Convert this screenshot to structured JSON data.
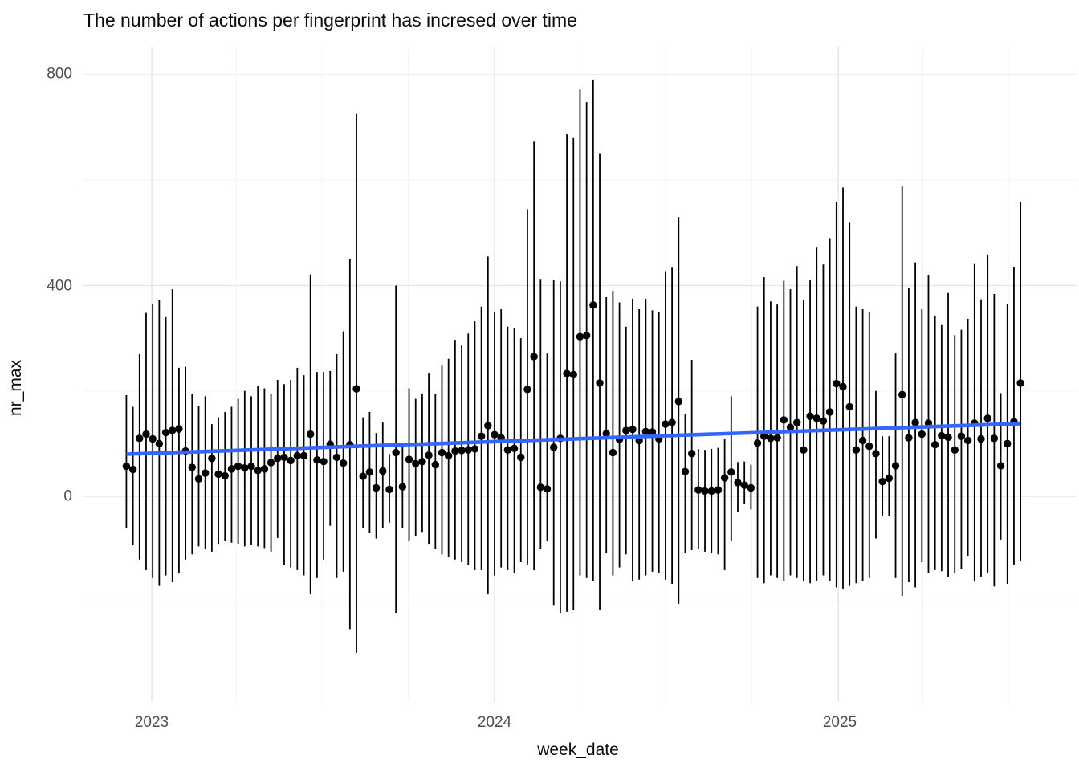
{
  "chart_data": {
    "type": "scatter",
    "title": "The number of actions per fingerprint has incresed over time",
    "xlabel": "week_date",
    "ylabel": "nr_max",
    "x_tick_labels": [
      "2023",
      "2024",
      "2025"
    ],
    "y_tick_labels": [
      "0",
      "400",
      "800"
    ],
    "legend": "none",
    "grid": "on",
    "axes": {
      "x_major_dates": [
        "2023-01-01",
        "2024-01-01",
        "2025-01-01"
      ],
      "x_minor_dates": [
        "2023-04-01",
        "2023-07-01",
        "2023-10-01",
        "2024-04-01",
        "2024-07-01",
        "2024-10-01",
        "2025-04-01",
        "2025-07-01"
      ],
      "y_major": [
        0,
        400,
        800
      ],
      "y_minor": [
        -200,
        200,
        600
      ],
      "ylim": [
        -390,
        840
      ],
      "x_range": [
        "2022-12-05",
        "2025-07-14"
      ]
    },
    "colors": {
      "point": "#000000",
      "range_bar": "#000000",
      "trend": "#3366FF",
      "grid_major": "#e7e7e7",
      "grid_minor": "#f3f3f3",
      "tick_text": "#4d4d4d",
      "title_text": "#0b0b0b",
      "background": "#ffffff"
    },
    "trend": {
      "type": "linear",
      "start_date": "2022-12-05",
      "start_value": 80,
      "end_date": "2025-07-14",
      "end_value": 138
    },
    "points_format": [
      "week_date",
      "ymin",
      "nr_max",
      "ymax"
    ],
    "points": [
      [
        "2022-12-05",
        -61,
        57,
        192
      ],
      [
        "2022-12-12",
        -92,
        51,
        170
      ],
      [
        "2022-12-19",
        -120,
        110,
        270
      ],
      [
        "2022-12-26",
        -140,
        118,
        348
      ],
      [
        "2023-01-02",
        -155,
        109,
        366
      ],
      [
        "2023-01-09",
        -170,
        100,
        373
      ],
      [
        "2023-01-16",
        -150,
        121,
        340
      ],
      [
        "2023-01-23",
        -163,
        125,
        393
      ],
      [
        "2023-01-30",
        -145,
        128,
        244
      ],
      [
        "2023-02-06",
        -120,
        86,
        246
      ],
      [
        "2023-02-13",
        -110,
        55,
        195
      ],
      [
        "2023-02-20",
        -95,
        33,
        172
      ],
      [
        "2023-02-27",
        -100,
        44,
        190
      ],
      [
        "2023-03-06",
        -105,
        72,
        137
      ],
      [
        "2023-03-13",
        -90,
        42,
        150
      ],
      [
        "2023-03-20",
        -85,
        39,
        160
      ],
      [
        "2023-03-27",
        -88,
        52,
        170
      ],
      [
        "2023-04-03",
        -90,
        57,
        185
      ],
      [
        "2023-04-10",
        -95,
        54,
        200
      ],
      [
        "2023-04-17",
        -92,
        57,
        190
      ],
      [
        "2023-04-24",
        -95,
        49,
        210
      ],
      [
        "2023-05-01",
        -98,
        52,
        205
      ],
      [
        "2023-05-08",
        -105,
        64,
        195
      ],
      [
        "2023-05-15",
        -79,
        72,
        221
      ],
      [
        "2023-05-22",
        -130,
        74,
        213
      ],
      [
        "2023-05-29",
        -135,
        68,
        221
      ],
      [
        "2023-06-05",
        -140,
        77,
        244
      ],
      [
        "2023-06-12",
        -150,
        77,
        230
      ],
      [
        "2023-06-19",
        -186,
        118,
        421
      ],
      [
        "2023-06-26",
        -155,
        69,
        236
      ],
      [
        "2023-07-03",
        -120,
        66,
        236
      ],
      [
        "2023-07-10",
        -56,
        99,
        238
      ],
      [
        "2023-07-17",
        -155,
        74,
        270
      ],
      [
        "2023-07-24",
        -143,
        63,
        313
      ],
      [
        "2023-07-31",
        -252,
        98,
        450
      ],
      [
        "2023-08-07",
        -297,
        204,
        726
      ],
      [
        "2023-08-14",
        -60,
        38,
        150
      ],
      [
        "2023-08-21",
        -70,
        46,
        160
      ],
      [
        "2023-08-28",
        -80,
        16,
        120
      ],
      [
        "2023-09-04",
        -60,
        48,
        140
      ],
      [
        "2023-09-11",
        -50,
        13,
        80
      ],
      [
        "2023-09-18",
        -221,
        83,
        400
      ],
      [
        "2023-09-25",
        -60,
        18,
        100
      ],
      [
        "2023-10-02",
        -84,
        70,
        205
      ],
      [
        "2023-10-09",
        -75,
        62,
        185
      ],
      [
        "2023-10-16",
        -69,
        66,
        195
      ],
      [
        "2023-10-23",
        -90,
        78,
        233
      ],
      [
        "2023-10-30",
        -100,
        60,
        195
      ],
      [
        "2023-11-06",
        -110,
        83,
        248
      ],
      [
        "2023-11-13",
        -115,
        77,
        261
      ],
      [
        "2023-11-20",
        -120,
        86,
        297
      ],
      [
        "2023-11-27",
        -125,
        87,
        287
      ],
      [
        "2023-12-04",
        -130,
        88,
        309
      ],
      [
        "2023-12-11",
        -140,
        90,
        332
      ],
      [
        "2023-12-18",
        -140,
        114,
        360
      ],
      [
        "2023-12-25",
        -186,
        134,
        455
      ],
      [
        "2024-01-01",
        -150,
        117,
        350
      ],
      [
        "2024-01-08",
        -135,
        111,
        355
      ],
      [
        "2024-01-15",
        -140,
        88,
        322
      ],
      [
        "2024-01-22",
        -145,
        91,
        320
      ],
      [
        "2024-01-29",
        -125,
        74,
        300
      ],
      [
        "2024-02-05",
        -130,
        203,
        545
      ],
      [
        "2024-02-12",
        -140,
        265,
        673
      ],
      [
        "2024-02-19",
        -99,
        17,
        411
      ],
      [
        "2024-02-26",
        -85,
        14,
        271
      ],
      [
        "2024-03-04",
        -206,
        93,
        410
      ],
      [
        "2024-03-11",
        -221,
        110,
        408
      ],
      [
        "2024-03-18",
        -219,
        233,
        687
      ],
      [
        "2024-03-25",
        -215,
        231,
        680
      ],
      [
        "2024-04-01",
        -150,
        303,
        772
      ],
      [
        "2024-04-08",
        -155,
        305,
        748
      ],
      [
        "2024-04-15",
        -160,
        363,
        791
      ],
      [
        "2024-04-22",
        -216,
        215,
        650
      ],
      [
        "2024-04-29",
        -107,
        119,
        378
      ],
      [
        "2024-05-06",
        -150,
        83,
        390
      ],
      [
        "2024-05-13",
        -135,
        108,
        368
      ],
      [
        "2024-05-20",
        -110,
        125,
        322
      ],
      [
        "2024-05-27",
        -161,
        127,
        375
      ],
      [
        "2024-06-03",
        -158,
        106,
        355
      ],
      [
        "2024-06-10",
        -150,
        123,
        375
      ],
      [
        "2024-06-17",
        -143,
        122,
        353
      ],
      [
        "2024-06-24",
        -145,
        109,
        350
      ],
      [
        "2024-07-01",
        -158,
        137,
        426
      ],
      [
        "2024-07-08",
        -166,
        140,
        434
      ],
      [
        "2024-07-15",
        -204,
        180,
        530
      ],
      [
        "2024-07-22",
        -107,
        47,
        157
      ],
      [
        "2024-07-29",
        -102,
        81,
        259
      ],
      [
        "2024-08-05",
        -100,
        12,
        90
      ],
      [
        "2024-08-12",
        -105,
        10,
        88
      ],
      [
        "2024-08-19",
        -108,
        10,
        90
      ],
      [
        "2024-08-26",
        -110,
        12,
        92
      ],
      [
        "2024-09-02",
        -140,
        35,
        109
      ],
      [
        "2024-09-09",
        -84,
        46,
        190
      ],
      [
        "2024-09-16",
        -30,
        26,
        65
      ],
      [
        "2024-09-23",
        -14,
        21,
        66
      ],
      [
        "2024-09-30",
        -25,
        16,
        60
      ],
      [
        "2024-10-07",
        -155,
        101,
        360
      ],
      [
        "2024-10-14",
        -165,
        114,
        416
      ],
      [
        "2024-10-21",
        -150,
        110,
        370
      ],
      [
        "2024-10-28",
        -155,
        111,
        364
      ],
      [
        "2024-11-04",
        -160,
        145,
        409
      ],
      [
        "2024-11-11",
        -150,
        131,
        393
      ],
      [
        "2024-11-18",
        -155,
        140,
        437
      ],
      [
        "2024-11-25",
        -160,
        88,
        372
      ],
      [
        "2024-12-02",
        -165,
        152,
        410
      ],
      [
        "2024-12-09",
        -160,
        148,
        472
      ],
      [
        "2024-12-16",
        -150,
        143,
        440
      ],
      [
        "2024-12-23",
        -160,
        160,
        490
      ],
      [
        "2024-12-30",
        -173,
        214,
        558
      ],
      [
        "2025-01-06",
        -175,
        208,
        586
      ],
      [
        "2025-01-13",
        -170,
        170,
        519
      ],
      [
        "2025-01-20",
        -165,
        88,
        360
      ],
      [
        "2025-01-27",
        -160,
        106,
        355
      ],
      [
        "2025-02-03",
        -155,
        95,
        350
      ],
      [
        "2025-02-10",
        -80,
        81,
        200
      ],
      [
        "2025-02-17",
        -38,
        28,
        114
      ],
      [
        "2025-02-24",
        -38,
        34,
        114
      ],
      [
        "2025-03-03",
        -155,
        58,
        271
      ],
      [
        "2025-03-10",
        -189,
        193,
        589
      ],
      [
        "2025-03-17",
        -163,
        111,
        396
      ],
      [
        "2025-03-24",
        -173,
        140,
        444
      ],
      [
        "2025-03-31",
        -125,
        118,
        355
      ],
      [
        "2025-04-07",
        -145,
        139,
        420
      ],
      [
        "2025-04-14",
        -140,
        98,
        343
      ],
      [
        "2025-04-21",
        -142,
        115,
        325
      ],
      [
        "2025-04-28",
        -153,
        112,
        386
      ],
      [
        "2025-05-05",
        -145,
        88,
        306
      ],
      [
        "2025-05-12",
        -138,
        114,
        316
      ],
      [
        "2025-05-19",
        -113,
        106,
        337
      ],
      [
        "2025-05-26",
        -161,
        139,
        441
      ],
      [
        "2025-06-02",
        -153,
        109,
        374
      ],
      [
        "2025-06-09",
        -145,
        148,
        459
      ],
      [
        "2025-06-16",
        -171,
        110,
        384
      ],
      [
        "2025-06-23",
        -82,
        58,
        196
      ],
      [
        "2025-06-30",
        -166,
        100,
        365
      ],
      [
        "2025-07-07",
        -130,
        142,
        435
      ],
      [
        "2025-07-14",
        -122,
        215,
        558
      ]
    ]
  }
}
